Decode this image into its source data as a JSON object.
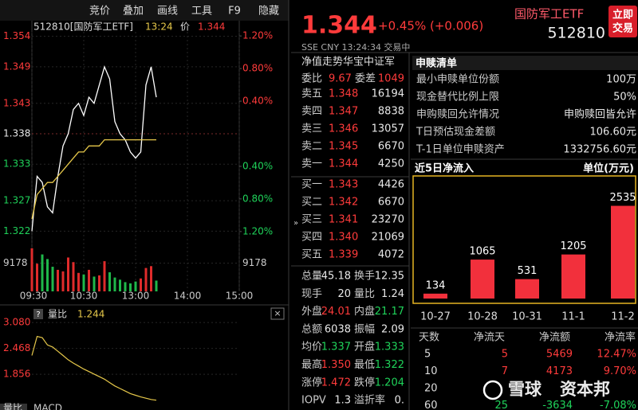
{
  "toolbar": [
    "竞价",
    "叠加",
    "画线",
    "工具",
    "F9",
    "隐藏"
  ],
  "chart": {
    "type": "line",
    "title": "512810[国防军工ETF]",
    "time": "13:24",
    "price_label": "价",
    "price": "1.344",
    "x": [
      0,
      6,
      12,
      18,
      24,
      30,
      36,
      42,
      48,
      54,
      60,
      66,
      72,
      78,
      84,
      90,
      96,
      102,
      108,
      114,
      120,
      126,
      132,
      138,
      144
    ],
    "xlim": [
      0,
      240
    ],
    "xticks": [
      {
        "value": 0,
        "label": "09:30"
      },
      {
        "value": 60,
        "label": "10:30"
      },
      {
        "value": 120,
        "label": "13:00"
      },
      {
        "value": 180,
        "label": "14:00"
      },
      {
        "value": 240,
        "label": "15:00"
      }
    ],
    "series": [
      {
        "color": "#ffffff",
        "values": [
          1.322,
          1.331,
          1.33,
          1.326,
          1.325,
          1.331,
          1.336,
          1.338,
          1.342,
          1.343,
          1.341,
          1.344,
          1.343,
          1.346,
          1.349,
          1.347,
          1.34,
          1.338,
          1.337,
          1.335,
          1.334,
          1.335,
          1.346,
          1.349,
          1.344
        ]
      },
      {
        "color": "#e6c84a",
        "values": [
          1.324,
          1.328,
          1.329,
          1.33,
          1.33,
          1.331,
          1.332,
          1.333,
          1.334,
          1.335,
          1.335,
          1.336,
          1.336,
          1.336,
          1.337,
          1.337,
          1.337,
          1.337,
          1.337,
          1.337,
          1.337,
          1.337,
          1.337,
          1.337,
          1.337
        ]
      }
    ],
    "ylim": [
      1.321,
      1.355
    ],
    "yticks": [
      1.354,
      1.349,
      1.343,
      1.338,
      1.333,
      1.327,
      1.322
    ],
    "y2lim": [
      -1.27,
      1.27
    ],
    "y2ticks": [
      {
        "value": 1.2,
        "label": "1.20%"
      },
      {
        "value": 0.8,
        "label": "0.80%"
      },
      {
        "value": 0.4,
        "label": "0.40%"
      },
      {
        "value": -0.4,
        "label": "0.40%"
      },
      {
        "value": -0.8,
        "label": "0.80%"
      },
      {
        "value": -1.2,
        "label": "1.20%"
      }
    ],
    "volume": {
      "values": [
        14000,
        9000,
        12000,
        10500,
        8000,
        7000,
        6500,
        11000,
        9500,
        6000,
        5500,
        7000,
        4800,
        5200,
        9800,
        6200,
        4500,
        3800,
        3000,
        2600,
        3200,
        4200,
        7600,
        8200,
        3500
      ],
      "ylim": [
        0,
        18356
      ],
      "yticks": [
        9178
      ]
    }
  },
  "indicator": {
    "help": "?",
    "name": "量比",
    "value": "1.244",
    "values": [
      2.3,
      2.75,
      2.72,
      2.55,
      2.5,
      2.4,
      2.3,
      2.2,
      2.12,
      2.05,
      1.98,
      1.92,
      1.86,
      1.8,
      1.74,
      1.66,
      1.58,
      1.52,
      1.46,
      1.4,
      1.36,
      1.32,
      1.29,
      1.26,
      1.244
    ],
    "ylim": [
      1.2,
      3.27
    ],
    "yticks": [
      {
        "value": 3.08,
        "label": "3.080"
      },
      2.468,
      1.856
    ],
    "color": "#e6c84a"
  },
  "bottom_tabs": [
    "量比",
    "MACD"
  ],
  "quote": {
    "price": "1.344",
    "change": "+0.45% (+0.006)",
    "info": "SSE  CNY  13:24:34  交易中",
    "nav": "净值走势华宝中证军",
    "wb_label": "委比",
    "wb": "9.67",
    "wc_label": "委差",
    "wc": "1049",
    "asks": [
      [
        "卖五",
        "1.348",
        "16194"
      ],
      [
        "卖四",
        "1.347",
        "8838"
      ],
      [
        "卖三",
        "1.346",
        "13057"
      ],
      [
        "卖二",
        "1.345",
        "6670"
      ],
      [
        "卖一",
        "1.344",
        "4250"
      ]
    ],
    "bids": [
      [
        "买一",
        "1.343",
        "4426"
      ],
      [
        "买二",
        "1.342",
        "6670"
      ],
      [
        "买三",
        "1.341",
        "23270"
      ],
      [
        "买四",
        "1.340",
        "21069"
      ],
      [
        "买五",
        "1.339",
        "4072"
      ]
    ],
    "stats": [
      [
        "总量",
        "45.18",
        "换手",
        "12.35"
      ],
      [
        "现手",
        "20",
        "量比",
        "1.24"
      ],
      [
        "外盘",
        "24.01",
        "内盘",
        "21.17"
      ],
      [
        "总额",
        "6038",
        "振幅",
        "2.09"
      ],
      [
        "均价",
        "1.337",
        "开盘",
        "1.333"
      ],
      [
        "最高",
        "1.350",
        "最低",
        "1.322"
      ],
      [
        "涨停",
        "1.472",
        "跌停",
        "1.204"
      ],
      [
        "IOPV",
        "1.3",
        "溢折率",
        "0."
      ]
    ]
  },
  "etf": {
    "name": "国防军工ETF",
    "code": "512810",
    "button": [
      "立即",
      "交易"
    ],
    "list_title": "申赎清单",
    "list": [
      [
        "最小申赎单位份额",
        "100万"
      ],
      [
        "现金替代比例上限",
        "50%"
      ],
      [
        "申购赎回允许情况",
        "申购赎回皆允许"
      ],
      [
        "T日预估现金差额",
        "106.60元"
      ],
      [
        "T-1日单位申赎资产",
        "1332756.60元"
      ]
    ],
    "flow": {
      "type": "bar",
      "title": "近5日净流入",
      "unit": "单位(万元)",
      "categories": [
        "10-27",
        "10-28",
        "10-31",
        "11-1",
        "11-2"
      ],
      "values": [
        134,
        1065,
        531,
        1205,
        2535
      ],
      "color": "#f2303c",
      "ylim": [
        0,
        3200
      ]
    },
    "table": {
      "header": [
        "天数",
        "净流天",
        "净流额",
        "净流率"
      ],
      "rows": [
        [
          "5",
          "5",
          "5469",
          "12.47%"
        ],
        [
          "10",
          "7",
          "4173",
          "9.70%"
        ],
        [
          "20"
        ],
        [
          "60",
          "25",
          "-3634",
          "-7.08%"
        ]
      ]
    }
  },
  "watermark": [
    "雪球",
    "资本邦"
  ]
}
